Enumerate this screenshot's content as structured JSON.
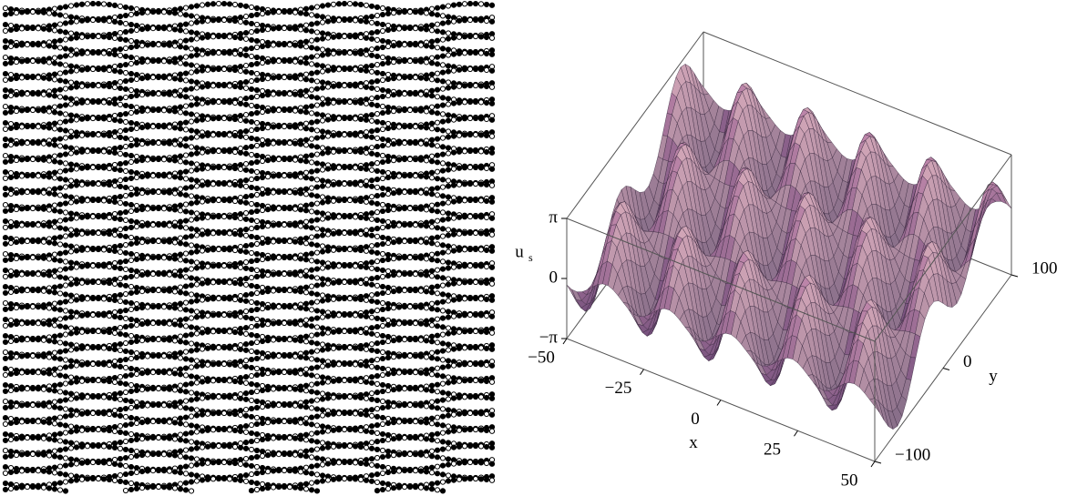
{
  "chart_data": {
    "type": "surface",
    "zlabel": "u",
    "zlabel_sub": "s",
    "xlabel": "x",
    "ylabel": "y",
    "xlim": [
      -50,
      50
    ],
    "ylim": [
      -100,
      100
    ],
    "zlim": [
      {
        "value": -3.14159,
        "label": "−π"
      },
      {
        "value": 3.14159,
        "label": "π"
      }
    ],
    "xticks": [
      {
        "value": -50,
        "label": "−50"
      },
      {
        "value": -25,
        "label": "−25"
      },
      0,
      25,
      50
    ],
    "yticks": [
      {
        "value": -100,
        "label": "−100"
      },
      0,
      100
    ],
    "zticks": [
      {
        "value": -3.14159,
        "label": "−π"
      },
      0,
      {
        "value": 3.14159,
        "label": "π"
      }
    ],
    "color": "#8e6a96"
  }
}
